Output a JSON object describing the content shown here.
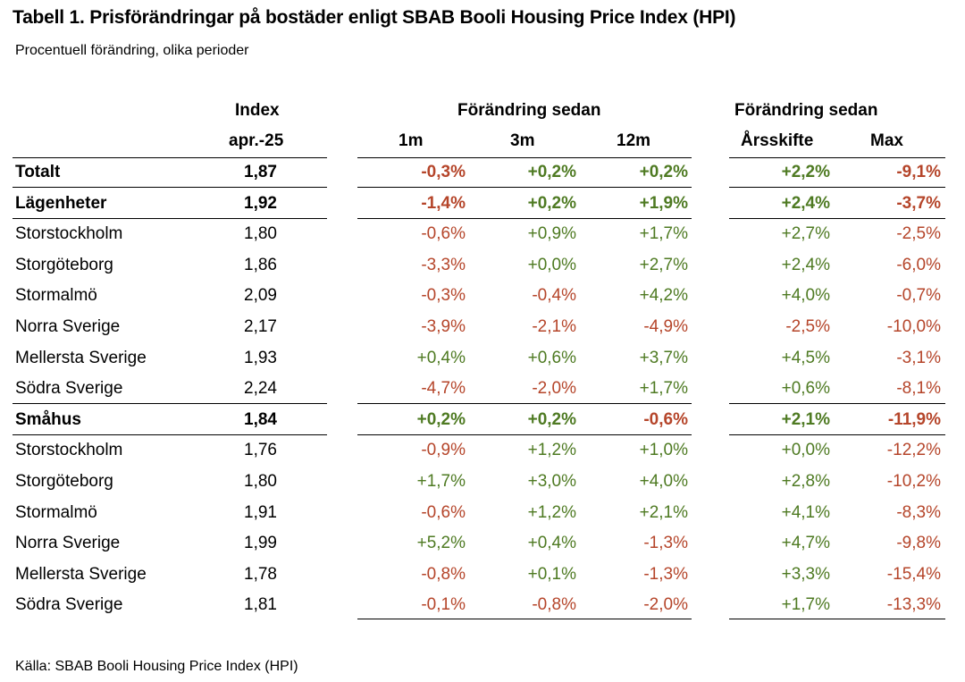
{
  "title": "Tabell 1. Prisförändringar på bostäder enligt SBAB Booli Housing Price Index (HPI)",
  "subtitle": "Procentuell förändring, olika perioder",
  "source": "Källa: SBAB Booli Housing Price Index (HPI)",
  "headers": {
    "index_top": "Index",
    "index_sub": "apr.-25",
    "group1": "Förändring sedan",
    "col_1m": "1m",
    "col_3m": "3m",
    "col_12m": "12m",
    "group2": "Förändring sedan",
    "col_ars": "Årsskifte",
    "col_max": "Max"
  },
  "colors": {
    "positive": "#4e7a22",
    "negative": "#b5452a"
  },
  "rows": [
    {
      "label": "Totalt",
      "bold": true,
      "index": "1,87",
      "m1": "-0,3%",
      "m3": "+0,2%",
      "m12": "+0,2%",
      "ars": "+2,2%",
      "max": "-9,1%"
    },
    {
      "label": "Lägenheter",
      "bold": true,
      "index": "1,92",
      "m1": "-1,4%",
      "m3": "+0,2%",
      "m12": "+1,9%",
      "ars": "+2,4%",
      "max": "-3,7%"
    },
    {
      "label": "Storstockholm",
      "bold": false,
      "index": "1,80",
      "m1": "-0,6%",
      "m3": "+0,9%",
      "m12": "+1,7%",
      "ars": "+2,7%",
      "max": "-2,5%"
    },
    {
      "label": "Storgöteborg",
      "bold": false,
      "index": "1,86",
      "m1": "-3,3%",
      "m3": "+0,0%",
      "m12": "+2,7%",
      "ars": "+2,4%",
      "max": "-6,0%"
    },
    {
      "label": "Stormalmö",
      "bold": false,
      "index": "2,09",
      "m1": "-0,3%",
      "m3": "-0,4%",
      "m12": "+4,2%",
      "ars": "+4,0%",
      "max": "-0,7%"
    },
    {
      "label": "Norra Sverige",
      "bold": false,
      "index": "2,17",
      "m1": "-3,9%",
      "m3": "-2,1%",
      "m12": "-4,9%",
      "ars": "-2,5%",
      "max": "-10,0%"
    },
    {
      "label": "Mellersta Sverige",
      "bold": false,
      "index": "1,93",
      "m1": "+0,4%",
      "m3": "+0,6%",
      "m12": "+3,7%",
      "ars": "+4,5%",
      "max": "-3,1%"
    },
    {
      "label": "Södra Sverige",
      "bold": false,
      "index": "2,24",
      "m1": "-4,7%",
      "m3": "-2,0%",
      "m12": "+1,7%",
      "ars": "+0,6%",
      "max": "-8,1%"
    },
    {
      "label": "Småhus",
      "bold": true,
      "index": "1,84",
      "m1": "+0,2%",
      "m3": "+0,2%",
      "m12": "-0,6%",
      "ars": "+2,1%",
      "max": "-11,9%"
    },
    {
      "label": "Storstockholm",
      "bold": false,
      "index": "1,76",
      "m1": "-0,9%",
      "m3": "+1,2%",
      "m12": "+1,0%",
      "ars": "+0,0%",
      "max": "-12,2%"
    },
    {
      "label": "Storgöteborg",
      "bold": false,
      "index": "1,80",
      "m1": "+1,7%",
      "m3": "+3,0%",
      "m12": "+4,0%",
      "ars": "+2,8%",
      "max": "-10,2%"
    },
    {
      "label": "Stormalmö",
      "bold": false,
      "index": "1,91",
      "m1": "-0,6%",
      "m3": "+1,2%",
      "m12": "+2,1%",
      "ars": "+4,1%",
      "max": "-8,3%"
    },
    {
      "label": "Norra Sverige",
      "bold": false,
      "index": "1,99",
      "m1": "+5,2%",
      "m3": "+0,4%",
      "m12": "-1,3%",
      "ars": "+4,7%",
      "max": "-9,8%"
    },
    {
      "label": "Mellersta Sverige",
      "bold": false,
      "index": "1,78",
      "m1": "-0,8%",
      "m3": "+0,1%",
      "m12": "-1,3%",
      "ars": "+3,3%",
      "max": "-15,4%"
    },
    {
      "label": "Södra Sverige",
      "bold": false,
      "index": "1,81",
      "m1": "-0,1%",
      "m3": "-0,8%",
      "m12": "-2,0%",
      "ars": "+1,7%",
      "max": "-13,3%"
    }
  ]
}
